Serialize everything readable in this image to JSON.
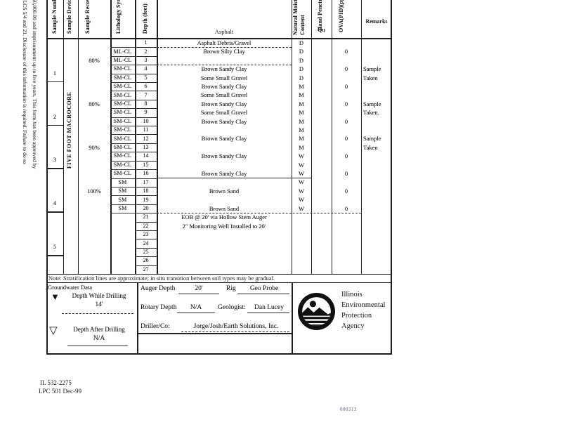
{
  "left_margin": {
    "line1": "The Agency is authorized to require this information under 415 ILCS 5/4 and 21. Disclosure of this information is required. Failure to do so",
    "line2": "to $25,000.00 for each day such failure continues, a fine up to $50,000.00 and imprisonment up to five years. This form has been approved by"
  },
  "table": {
    "headers": {
      "sample_number": "Sample Number",
      "sample_device": "Sample Device",
      "sample_recovery": "Sample Recovery",
      "lithology": "Lithology Symbol",
      "depth": "Depth (feet)",
      "surface_label": "Asphalt",
      "moisture_line1": "Natural Moisture",
      "moisture_line2": "Content",
      "hand_pen": "Hand Penetrometer",
      "hand_pen_sub": "Qu",
      "ova": "OVA(PID)(ppm)",
      "remarks": "Remarks"
    },
    "device_label": "FIVE FOOT MACROCORE",
    "samples": [
      {
        "number": "1",
        "recovery": "80%"
      },
      {
        "number": "2",
        "recovery": "80%"
      },
      {
        "number": "3",
        "recovery": "90%"
      },
      {
        "number": "4",
        "recovery": "100%"
      },
      {
        "number": "5",
        "recovery": ""
      }
    ],
    "rows": [
      {
        "depth": "1",
        "lith": "",
        "desc": "Asphalt Debris/Gravel",
        "moist": "D",
        "ova": "",
        "remark": ""
      },
      {
        "depth": "2",
        "lith": "ML-CL",
        "desc": "Brown Silty Clay",
        "moist": "D",
        "ova": "0",
        "remark": ""
      },
      {
        "depth": "3",
        "lith": "ML-CL",
        "desc": "",
        "moist": "D",
        "ova": "",
        "remark": ""
      },
      {
        "depth": "4",
        "lith": "SM-CL",
        "desc": "Brown Sandy Clay",
        "moist": "D",
        "ova": "0",
        "remark": "Sample"
      },
      {
        "depth": "5",
        "lith": "SM-CL",
        "desc": "Some Small Gravel",
        "moist": "D",
        "ova": "",
        "remark": "Taken"
      },
      {
        "depth": "6",
        "lith": "SM-CL",
        "desc": "Brown Sandy Clay",
        "moist": "M",
        "ova": "0",
        "remark": ""
      },
      {
        "depth": "7",
        "lith": "SM-CL",
        "desc": "Some Small Gravel",
        "moist": "M",
        "ova": "",
        "remark": ""
      },
      {
        "depth": "8",
        "lith": "SM-CL",
        "desc": "Brown Sandy Clay",
        "moist": "M",
        "ova": "0",
        "remark": "Sample"
      },
      {
        "depth": "9",
        "lith": "SM-CL",
        "desc": "Some Small Gravel",
        "moist": "M",
        "ova": "",
        "remark": "Taken."
      },
      {
        "depth": "10",
        "lith": "SM-CL",
        "desc": "Brown Sandy Clay",
        "moist": "M",
        "ova": "0",
        "remark": ""
      },
      {
        "depth": "11",
        "lith": "SM-CL",
        "desc": "",
        "moist": "M",
        "ova": "",
        "remark": ""
      },
      {
        "depth": "12",
        "lith": "SM-CL",
        "desc": "Brown Sandy Clay",
        "moist": "M",
        "ova": "0",
        "remark": "Sample"
      },
      {
        "depth": "13",
        "lith": "SM-CL",
        "desc": "",
        "moist": "M",
        "ova": "",
        "remark": "Taken"
      },
      {
        "depth": "14",
        "lith": "SM-CL",
        "desc": "Brown Sandy Clay",
        "moist": "W",
        "ova": "0",
        "remark": ""
      },
      {
        "depth": "15",
        "lith": "SM-CL",
        "desc": "",
        "moist": "W",
        "ova": "",
        "remark": ""
      },
      {
        "depth": "16",
        "lith": "SM-CL",
        "desc": "Brown Sandy Clay",
        "moist": "W",
        "ova": "0",
        "remark": ""
      },
      {
        "depth": "17",
        "lith": "SM",
        "desc": "",
        "moist": "W",
        "ova": "",
        "remark": ""
      },
      {
        "depth": "18",
        "lith": "SM",
        "desc": "Brown Sand",
        "moist": "W",
        "ova": "0",
        "remark": ""
      },
      {
        "depth": "19",
        "lith": "SM",
        "desc": "",
        "moist": "W",
        "ova": "",
        "remark": ""
      },
      {
        "depth": "20",
        "lith": "SM",
        "desc": "Brown Sand",
        "moist": "W",
        "ova": "0",
        "remark": ""
      },
      {
        "depth": "21",
        "lith": "",
        "desc": "EOB @ 20' via Hollow Stem Auger",
        "moist": "",
        "ova": "",
        "remark": ""
      },
      {
        "depth": "22",
        "lith": "",
        "desc": "2\" Monitoring Well Installed to 20'",
        "moist": "",
        "ova": "",
        "remark": ""
      },
      {
        "depth": "23",
        "lith": "",
        "desc": "",
        "moist": "",
        "ova": "",
        "remark": ""
      },
      {
        "depth": "24",
        "lith": "",
        "desc": "",
        "moist": "",
        "ova": "",
        "remark": ""
      },
      {
        "depth": "25",
        "lith": "",
        "desc": "",
        "moist": "",
        "ova": "",
        "remark": ""
      },
      {
        "depth": "26",
        "lith": "",
        "desc": "",
        "moist": "",
        "ova": "",
        "remark": ""
      },
      {
        "depth": "27",
        "lith": "",
        "desc": "",
        "moist": "",
        "ova": "",
        "remark": ""
      }
    ],
    "note": "Note: Stratification lines are approximate; in situ transition between soil types may be gradual."
  },
  "groundwater": {
    "title": "Groundwater Data",
    "while_icon": "▼",
    "while_drilling_label": "Depth While Drilling",
    "while_drilling_value": "14'",
    "after_icon": "▽",
    "after_drilling_label": "Depth After Drilling",
    "after_drilling_value": "N/A"
  },
  "drilling": {
    "auger_depth_label": "Auger Depth",
    "auger_depth_value": "20'",
    "rig_label": "Rig",
    "rig_value": "Geo Probe",
    "rotary_depth_label": "Rotary Depth",
    "rotary_depth_value": "N/A",
    "geologist_label": "Geologist:",
    "geologist_value": "Dan Lucey",
    "driller_label": "Driller/Co:",
    "driller_value": "Jorge/Josh/Earth Solutions, Inc."
  },
  "agency": {
    "name_lines": [
      "Illinois",
      "Environmental",
      "Protection",
      "Agency"
    ]
  },
  "footer": {
    "form_number": "IL 532-2275",
    "form_code": "LPC 501 Dec-99",
    "page_number": "000313"
  }
}
